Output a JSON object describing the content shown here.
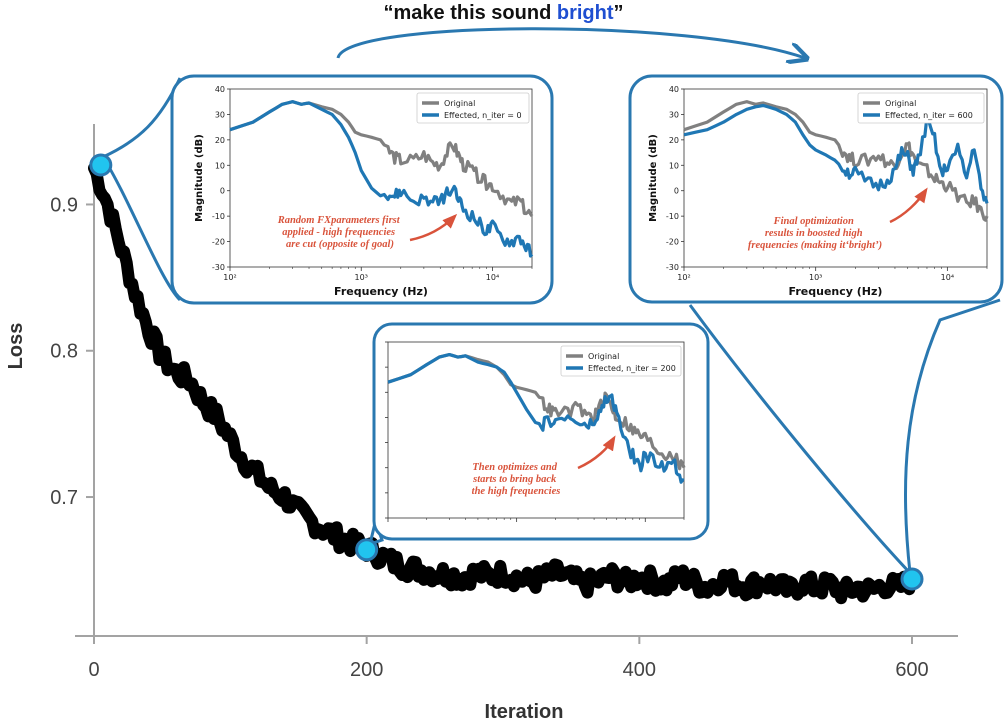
{
  "title": {
    "open_quote": "“",
    "prefix": "make this sound ",
    "highlight": "bright",
    "close_quote": "”"
  },
  "colors": {
    "loss_line": "#000000",
    "axis": "#a3a3a3",
    "callout": "#2a78b0",
    "marker_fill": "#21c4ef",
    "original": "#808080",
    "effected": "#1f77b4",
    "annotation": "#d9533b",
    "title_highlight": "#1f4fd1"
  },
  "chart_data": [
    {
      "id": "loss",
      "type": "line",
      "xlabel": "Iteration",
      "ylabel": "Loss",
      "xlim": [
        0,
        630
      ],
      "ylim": [
        0.605,
        0.955
      ],
      "xticks": [
        0,
        200,
        400,
        600
      ],
      "xtick_labels": [
        "0",
        "200",
        "400",
        "600"
      ],
      "yticks": [
        0.7,
        0.8,
        0.9
      ],
      "ytick_labels": [
        "0.7",
        "0.8",
        "0.9"
      ],
      "grid": false,
      "series": [
        {
          "x": [
            0,
            10,
            20,
            30,
            40,
            50,
            60,
            70,
            80,
            90,
            100,
            110,
            120,
            130,
            140,
            150,
            160,
            170,
            180,
            190,
            200,
            210,
            220,
            230,
            240,
            250,
            260,
            270,
            280,
            290,
            300,
            310,
            320,
            330,
            340,
            350,
            360,
            370,
            380,
            390,
            400,
            410,
            420,
            430,
            440,
            450,
            460,
            470,
            480,
            490,
            500,
            510,
            520,
            530,
            540,
            550,
            560,
            570,
            580,
            590,
            600
          ],
          "y": [
            0.925,
            0.9,
            0.87,
            0.84,
            0.815,
            0.795,
            0.785,
            0.78,
            0.765,
            0.755,
            0.74,
            0.725,
            0.715,
            0.705,
            0.7,
            0.69,
            0.683,
            0.677,
            0.672,
            0.668,
            0.665,
            0.66,
            0.655,
            0.652,
            0.65,
            0.648,
            0.647,
            0.645,
            0.648,
            0.646,
            0.648,
            0.645,
            0.642,
            0.645,
            0.648,
            0.644,
            0.64,
            0.643,
            0.646,
            0.642,
            0.645,
            0.643,
            0.64,
            0.646,
            0.642,
            0.638,
            0.644,
            0.641,
            0.639,
            0.642,
            0.64,
            0.636,
            0.641,
            0.638,
            0.64,
            0.635,
            0.638,
            0.636,
            0.64,
            0.638,
            0.644
          ]
        }
      ],
      "highlight_points": [
        {
          "x": 5,
          "y": 0.927
        },
        {
          "x": 200,
          "y": 0.664
        },
        {
          "x": 600,
          "y": 0.644
        }
      ]
    },
    {
      "id": "inset_iter0",
      "type": "line",
      "xlabel": "Frequency (Hz)",
      "ylabel": "Magnitude (dB)",
      "xscale": "log",
      "xlim": [
        100,
        20000
      ],
      "ylim": [
        -30,
        40
      ],
      "yticks": [
        -30,
        -20,
        -10,
        0,
        10,
        20,
        30,
        40
      ],
      "xtick_labels": [
        "10²",
        "10³",
        "10⁴"
      ],
      "legend": "top-right",
      "annotation": "Random FXparameters first applied - high frequencies are cut (opposite of goal)",
      "series": [
        {
          "name": "Original",
          "x": [
            100,
            150,
            200,
            250,
            300,
            350,
            400,
            500,
            600,
            700,
            800,
            900,
            1000,
            1200,
            1400,
            1600,
            1800,
            2000,
            2500,
            3000,
            3500,
            4000,
            4500,
            5000,
            5500,
            6000,
            7000,
            8000,
            9000,
            10000,
            12000,
            14000,
            16000,
            18000,
            20000
          ],
          "y": [
            24,
            27,
            31,
            34,
            35,
            34,
            34.5,
            33,
            32,
            30,
            27,
            23,
            22,
            21,
            20,
            16,
            13,
            12,
            12,
            14,
            11,
            10,
            15,
            18,
            14,
            10,
            8,
            5,
            3,
            2,
            -2,
            -5,
            -4,
            -8,
            -10
          ]
        },
        {
          "name": "Effected, n_iter = 0",
          "x": [
            100,
            150,
            200,
            250,
            300,
            350,
            400,
            500,
            600,
            700,
            800,
            900,
            1000,
            1200,
            1400,
            1600,
            1800,
            2000,
            2500,
            3000,
            3500,
            4000,
            4500,
            5000,
            5500,
            6000,
            7000,
            8000,
            9000,
            10000,
            12000,
            14000,
            16000,
            18000,
            20000
          ],
          "y": [
            24,
            27,
            31,
            34,
            35,
            34,
            34.5,
            32,
            30,
            26,
            21,
            15,
            8,
            1,
            -2,
            -1,
            -2,
            0,
            -4,
            -3,
            -5,
            -4,
            -1,
            0,
            -3,
            -7,
            -10,
            -13,
            -16,
            -14,
            -19,
            -20,
            -18,
            -22,
            -25
          ]
        }
      ]
    },
    {
      "id": "inset_iter200",
      "type": "line",
      "xscale": "log",
      "xlim": [
        100,
        20000
      ],
      "ylim": [
        -30,
        40
      ],
      "legend": "top-right",
      "annotation": "Then optimizes and starts to bring back the high frequencies",
      "series": [
        {
          "name": "Original",
          "x": [
            100,
            150,
            200,
            250,
            300,
            350,
            400,
            500,
            600,
            700,
            800,
            900,
            1000,
            1200,
            1400,
            1600,
            1800,
            2000,
            2500,
            3000,
            3500,
            4000,
            4500,
            5000,
            5500,
            6000,
            7000,
            8000,
            9000,
            10000,
            12000,
            14000,
            16000,
            18000,
            20000
          ],
          "y": [
            24,
            27,
            31,
            34,
            35,
            34,
            34.5,
            33,
            32,
            30,
            27,
            23,
            22,
            21,
            20,
            16,
            13,
            12,
            12,
            14,
            11,
            10,
            15,
            18,
            14,
            10,
            8,
            5,
            3,
            2,
            -2,
            -5,
            -4,
            -8,
            -10
          ]
        },
        {
          "name": "Effected, n_iter = 200",
          "x": [
            100,
            150,
            200,
            250,
            300,
            350,
            400,
            500,
            600,
            700,
            800,
            900,
            1000,
            1200,
            1400,
            1600,
            1800,
            2000,
            2500,
            3000,
            3500,
            4000,
            4500,
            5000,
            5500,
            6000,
            7000,
            8000,
            9000,
            10000,
            12000,
            14000,
            16000,
            18000,
            20000
          ],
          "y": [
            24,
            27,
            31,
            34,
            35,
            34,
            34.5,
            32,
            31,
            30,
            28,
            24,
            20,
            13,
            8,
            7,
            9,
            8,
            10,
            8,
            6,
            8,
            12,
            18,
            17,
            12,
            0,
            -5,
            -10,
            -5,
            -8,
            -10,
            -6,
            -12,
            -15
          ]
        }
      ]
    },
    {
      "id": "inset_iter600",
      "type": "line",
      "xlabel": "Frequency (Hz)",
      "ylabel": "Magnitude (dB)",
      "xscale": "log",
      "xlim": [
        100,
        20000
      ],
      "ylim": [
        -30,
        40
      ],
      "yticks": [
        -30,
        -20,
        -10,
        0,
        10,
        20,
        30,
        40
      ],
      "xtick_labels": [
        "10²",
        "10³",
        "10⁴"
      ],
      "legend": "top-right",
      "annotation": "Final optimization results in boosted high frequencies (making it‘bright’)",
      "series": [
        {
          "name": "Original",
          "x": [
            100,
            150,
            200,
            250,
            300,
            350,
            400,
            500,
            600,
            700,
            800,
            900,
            1000,
            1200,
            1400,
            1600,
            1800,
            2000,
            2500,
            3000,
            3500,
            4000,
            4500,
            5000,
            5500,
            6000,
            7000,
            8000,
            9000,
            10000,
            12000,
            14000,
            16000,
            18000,
            20000
          ],
          "y": [
            24,
            27,
            31,
            34,
            35,
            34,
            34.5,
            33,
            32,
            30,
            27,
            23,
            22,
            21,
            20,
            16,
            13,
            12,
            12,
            14,
            11,
            10,
            15,
            18,
            14,
            10,
            8,
            5,
            3,
            2,
            -2,
            -5,
            -4,
            -8,
            -10
          ]
        },
        {
          "name": "Effected, n_iter = 600",
          "x": [
            100,
            150,
            200,
            250,
            300,
            350,
            400,
            500,
            600,
            700,
            800,
            900,
            1000,
            1200,
            1400,
            1600,
            1800,
            2000,
            2500,
            3000,
            3500,
            4000,
            4500,
            5000,
            5500,
            6000,
            7000,
            8000,
            9000,
            10000,
            12000,
            14000,
            16000,
            18000,
            20000
          ],
          "y": [
            22,
            24,
            27,
            30,
            32,
            33,
            33.5,
            32,
            30,
            27,
            22,
            18,
            16,
            14,
            12,
            9,
            7,
            7,
            3,
            2,
            4,
            8,
            15,
            13,
            8,
            12,
            27,
            20,
            6,
            10,
            16,
            5,
            18,
            0,
            -5
          ]
        }
      ]
    }
  ]
}
